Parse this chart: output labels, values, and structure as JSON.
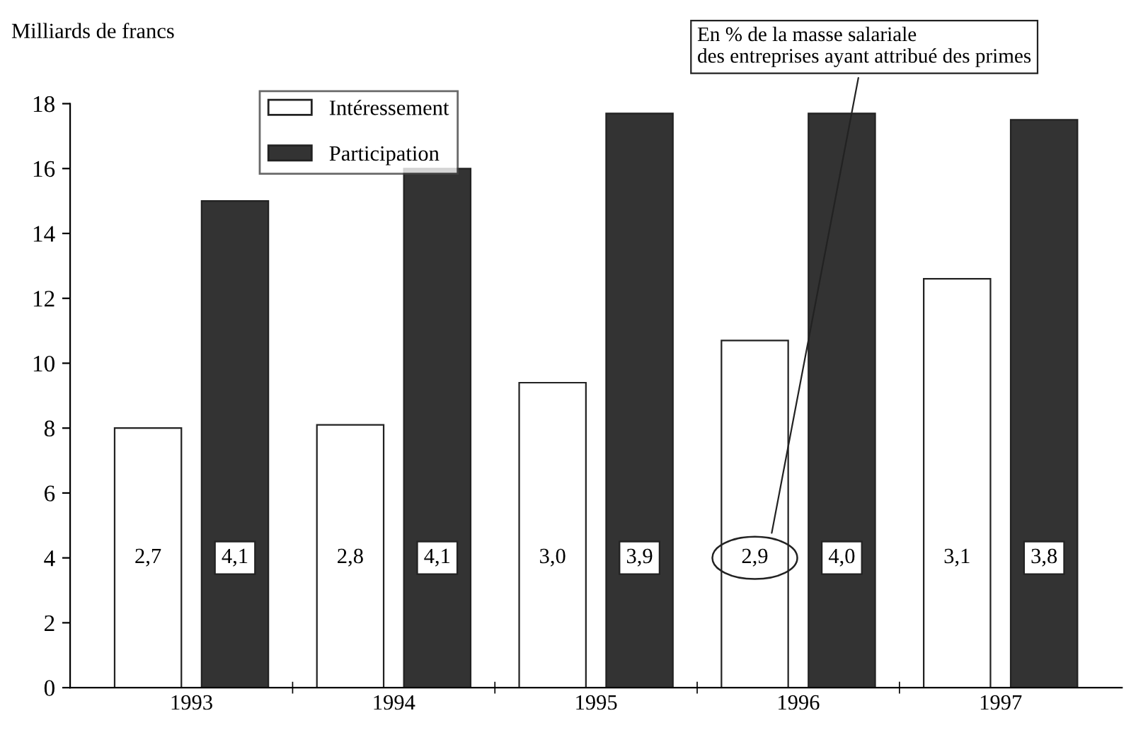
{
  "chart_data": {
    "type": "bar",
    "ylabel": "Milliards de francs",
    "categories": [
      "1993",
      "1994",
      "1995",
      "1996",
      "1997"
    ],
    "series": [
      {
        "name": "Intéressement",
        "color": "#ffffff",
        "values": [
          8.0,
          8.1,
          9.4,
          10.7,
          12.6
        ]
      },
      {
        "name": "Participation",
        "color": "#333333",
        "values": [
          15.0,
          16.0,
          17.7,
          17.7,
          17.5
        ]
      }
    ],
    "ylim": [
      0,
      18
    ],
    "yticks": [
      0,
      2,
      4,
      6,
      8,
      10,
      12,
      14,
      16,
      18
    ],
    "grid": false,
    "legend": "top left",
    "annotations": [
      "2,7",
      "4,1",
      "2,8",
      "4,1",
      "3,0",
      "3,9",
      "2,9",
      "4,0",
      "3,1",
      "3,8",
      "En % de la masse salariale\ndes entreprises ayant attribué des primes"
    ]
  }
}
